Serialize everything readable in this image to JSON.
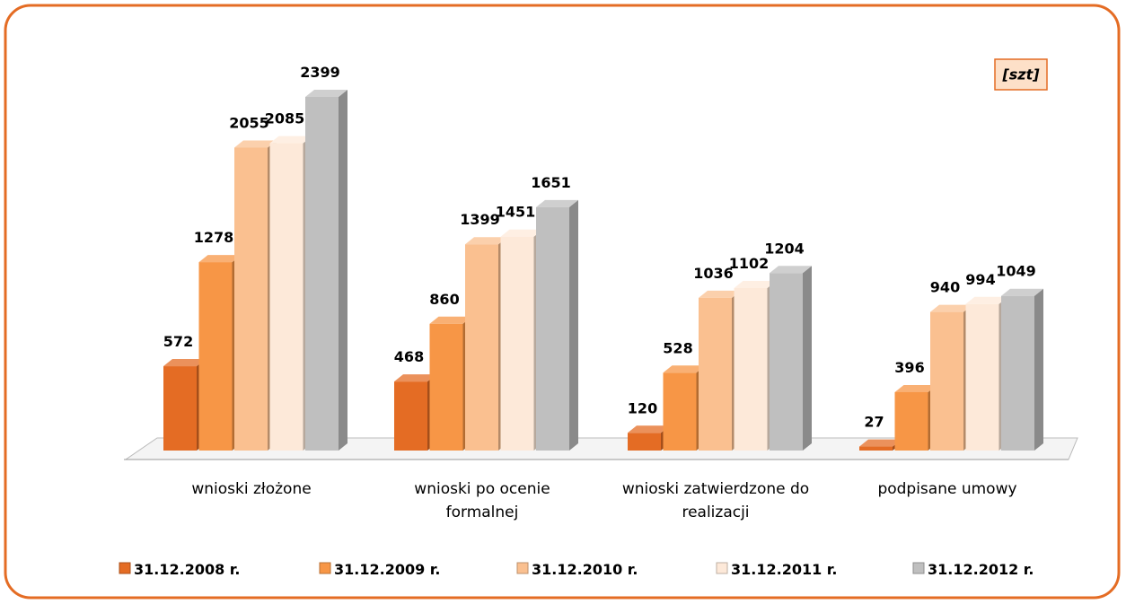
{
  "chart_data": {
    "type": "bar3d",
    "annotation": "[szt]",
    "categories": [
      "wnioski złożone",
      "wnioski po ocenie formalnej",
      "wnioski zatwierdzone do realizacji",
      "podpisane umowy"
    ],
    "series": [
      {
        "name": "31.12.2008 r.",
        "color": "#e46c24",
        "values": [
          572,
          468,
          120,
          27
        ]
      },
      {
        "name": "31.12.2009 r.",
        "color": "#f79646",
        "values": [
          1278,
          860,
          528,
          396
        ]
      },
      {
        "name": "31.12.2010 r.",
        "color": "#fac090",
        "values": [
          2055,
          1399,
          1036,
          940
        ]
      },
      {
        "name": "31.12.2011 r.",
        "color": "#fde9d9",
        "values": [
          2085,
          1451,
          1102,
          994
        ]
      },
      {
        "name": "31.12.2012 r.",
        "color": "#bfbfbf",
        "values": [
          2399,
          1651,
          1204,
          1049
        ]
      }
    ]
  }
}
